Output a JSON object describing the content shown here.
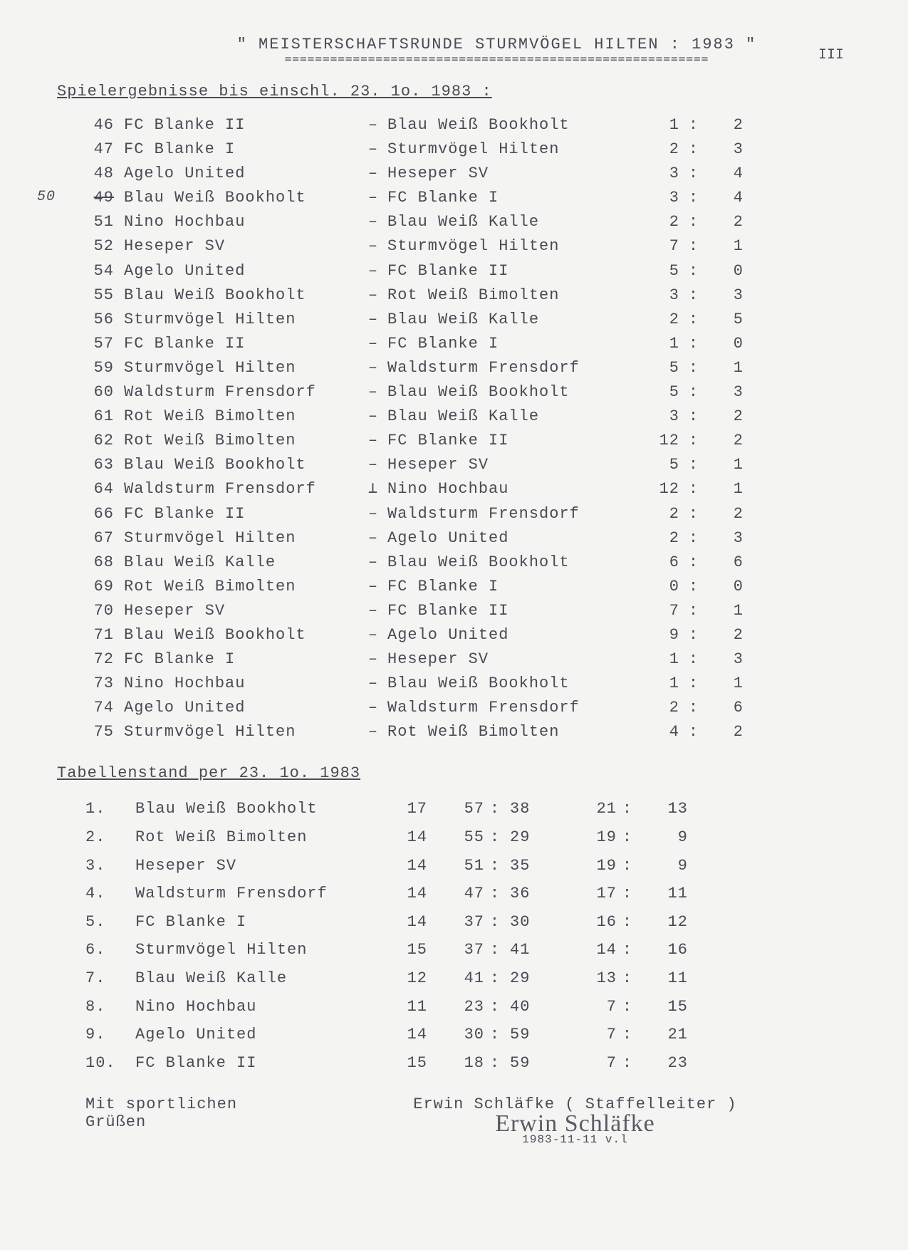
{
  "header": {
    "title": "\"  MEISTERSCHAFTSRUNDE  STURMVÖGEL  HILTEN   :  1983 \"",
    "underline": "========================================================",
    "page_number": "III"
  },
  "results_heading": "Spielergebnisse  bis  einschl.  23. 1o. 1983 :",
  "hand_note": "50",
  "matches": [
    {
      "no": "46",
      "home": "FC Blanke    II",
      "away": "Blau Weiß Bookholt",
      "s1": "1",
      "s2": "2"
    },
    {
      "no": "47",
      "home": "FC Blanke    I",
      "away": "Sturmvögel Hilten",
      "s1": "2",
      "s2": "3"
    },
    {
      "no": "48",
      "home": "Agelo United",
      "away": "Heseper SV",
      "s1": "3",
      "s2": "4"
    },
    {
      "no": "49",
      "home": "Blau Weiß Bookholt",
      "away": "FC Blanke   I",
      "s1": "3",
      "s2": "4",
      "strike_no": true
    },
    {
      "no": "51",
      "home": "Nino Hochbau",
      "away": "Blau Weiß Kalle",
      "s1": "2",
      "s2": "2"
    },
    {
      "no": "52",
      "home": "Heseper  SV",
      "away": "Sturmvögel Hilten",
      "s1": "7",
      "s2": "1"
    },
    {
      "no": "54",
      "home": "Agelo United",
      "away": "FC Blanke    II",
      "s1": "5",
      "s2": "0"
    },
    {
      "no": "55",
      "home": "Blau Weiß Bookholt",
      "away": "Rot Weiß Bimolten",
      "s1": "3",
      "s2": "3"
    },
    {
      "no": "56",
      "home": "Sturmvögel Hilten",
      "away": "Blau Weiß Kalle",
      "s1": "2",
      "s2": "5"
    },
    {
      "no": "57",
      "home": "FC Blanke    II",
      "away": "FC Blanke    I",
      "s1": "1",
      "s2": "0"
    },
    {
      "no": "59",
      "home": "Sturmvögel Hilten",
      "away": "Waldsturm Frensdorf",
      "s1": "5",
      "s2": "1"
    },
    {
      "no": "60",
      "home": "Waldsturm Frensdorf",
      "away": "Blau Weiß Bookholt",
      "s1": "5",
      "s2": "3"
    },
    {
      "no": "61",
      "home": "Rot Weiß Bimolten",
      "away": "Blau Weiß Kalle",
      "s1": "3",
      "s2": "2"
    },
    {
      "no": "62",
      "home": "Rot Weiß Bimolten",
      "away": "FC Blanke    II",
      "s1": "12",
      "s2": "2"
    },
    {
      "no": "63",
      "home": "Blau Weiß Bookholt",
      "away": "Heseper  SV",
      "s1": "5",
      "s2": "1"
    },
    {
      "no": "64",
      "home": "Waldsturm Frensdorf",
      "away": "Nino Hochbau",
      "s1": "12",
      "s2": "1",
      "dash": "⊥"
    },
    {
      "no": "66",
      "home": "FC Blanke    II",
      "away": "Waldsturm Frensdorf",
      "s1": "2",
      "s2": "2"
    },
    {
      "no": "67",
      "home": "Sturmvögel Hilten",
      "away": "Agelo United",
      "s1": "2",
      "s2": "3"
    },
    {
      "no": "68",
      "home": "Blau Weiß Kalle",
      "away": "Blau Weiß Bookholt",
      "s1": "6",
      "s2": "6"
    },
    {
      "no": "69",
      "home": "Rot Weiß Bimolten",
      "away": "FC Blanke    I",
      "s1": "0",
      "s2": "0"
    },
    {
      "no": "70",
      "home": "Heseper  SV",
      "away": "FC Blanke    II",
      "s1": "7",
      "s2": "1"
    },
    {
      "no": "71",
      "home": "Blau Weiß Bookholt",
      "away": "Agelo United",
      "s1": "9",
      "s2": "2"
    },
    {
      "no": "72",
      "home": "FC Blanke    I",
      "away": "Heseper  SV",
      "s1": "1",
      "s2": "3"
    },
    {
      "no": "73",
      "home": "Nino Hochbau",
      "away": "Blau Weiß Bookholt",
      "s1": "1",
      "s2": "1"
    },
    {
      "no": "74",
      "home": "Agelo United",
      "away": "Waldsturm Frensdorf",
      "s1": "2",
      "s2": "6"
    },
    {
      "no": "75",
      "home": "Sturmvögel Hilten",
      "away": "Rot Weiß Bimolten",
      "s1": "4",
      "s2": "2"
    }
  ],
  "standings_heading": "Tabellenstand  per  23. 1o. 1983",
  "standings": [
    {
      "rank": "1.",
      "team": "Blau Weiß Bookholt",
      "sp": "17",
      "gf": "57",
      "ga": "38",
      "pp": "21",
      "pm": "13"
    },
    {
      "rank": "2.",
      "team": "Rot Weiß Bimolten",
      "sp": "14",
      "gf": "55",
      "ga": "29",
      "pp": "19",
      "pm": "9"
    },
    {
      "rank": "3.",
      "team": "Heseper  SV",
      "sp": "14",
      "gf": "51",
      "ga": "35",
      "pp": "19",
      "pm": "9"
    },
    {
      "rank": "4.",
      "team": "Waldsturm Frensdorf",
      "sp": "14",
      "gf": "47",
      "ga": "36",
      "pp": "17",
      "pm": "11"
    },
    {
      "rank": "5.",
      "team": "FC Blanke    I",
      "sp": "14",
      "gf": "37",
      "ga": "30",
      "pp": "16",
      "pm": "12"
    },
    {
      "rank": "6.",
      "team": "Sturmvögel Hilten",
      "sp": "15",
      "gf": "37",
      "ga": "41",
      "pp": "14",
      "pm": "16"
    },
    {
      "rank": "7.",
      "team": "Blau Weiß Kalle",
      "sp": "12",
      "gf": "41",
      "ga": "29",
      "pp": "13",
      "pm": "11"
    },
    {
      "rank": "8.",
      "team": "Nino Hochbau",
      "sp": "11",
      "gf": "23",
      "ga": "40",
      "pp": "7",
      "pm": "15"
    },
    {
      "rank": "9.",
      "team": "Agelo United",
      "sp": "14",
      "gf": "30",
      "ga": "59",
      "pp": "7",
      "pm": "21"
    },
    {
      "rank": "10.",
      "team": "FC Blanke    II",
      "sp": "15",
      "gf": "18",
      "ga": "59",
      "pp": "7",
      "pm": "23"
    }
  ],
  "footer": {
    "greeting": "Mit  sportlichen  Grüßen",
    "signer_line": "Erwin Schläfke  ( Staffelleiter )",
    "signature": "Erwin Schläfke",
    "date": "1983-11-11  v.l"
  }
}
